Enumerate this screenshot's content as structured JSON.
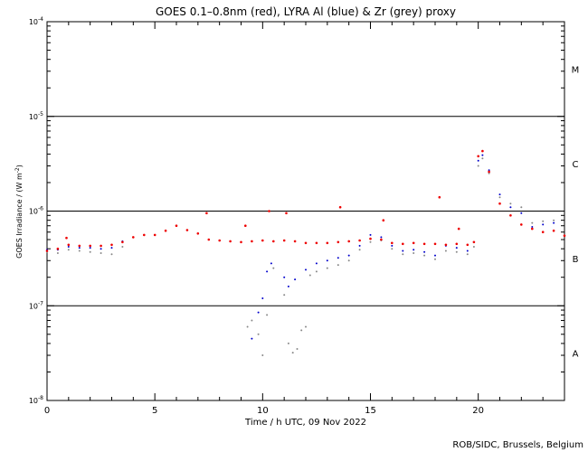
{
  "chart_data": {
    "type": "scatter",
    "title": "GOES 0.1–0.8nm (red), LYRA Al (blue) & Zr (grey) proxy",
    "xlabel": "Time / h UTC, 09 Nov 2022",
    "ylabel_main": "GOES Irradiance / (W m",
    "ylabel_sup": "-2",
    "ylabel_close": ")",
    "credit": "ROB/SIDC, Brussels, Belgium",
    "xlim": [
      0,
      24
    ],
    "ylim": [
      1e-08,
      0.0001
    ],
    "yscale": "log",
    "xticks": [
      {
        "v": 0,
        "label": "0"
      },
      {
        "v": 5,
        "label": "5"
      },
      {
        "v": 10,
        "label": "10"
      },
      {
        "v": 15,
        "label": "15"
      },
      {
        "v": 20,
        "label": "20"
      }
    ],
    "yticks": [
      {
        "exp": -8,
        "base": "10",
        "sup": "-8"
      },
      {
        "exp": -7,
        "base": "10",
        "sup": "-7"
      },
      {
        "exp": -6,
        "base": "10",
        "sup": "-6"
      },
      {
        "exp": -5,
        "base": "10",
        "sup": "-5"
      },
      {
        "exp": -4,
        "base": "10",
        "sup": "-4"
      }
    ],
    "flare_lines": [
      1e-07,
      1e-06,
      1e-05
    ],
    "flare_classes": [
      {
        "label": "A",
        "exp": -7.5
      },
      {
        "label": "B",
        "exp": -6.5
      },
      {
        "label": "C",
        "exp": -5.5
      },
      {
        "label": "M",
        "exp": -4.5
      }
    ],
    "series": [
      {
        "name": "GOES 0.1–0.8nm",
        "color": "#ee0000",
        "x": [
          0,
          0.5,
          1,
          1.5,
          2,
          2.5,
          3,
          3.5,
          4,
          4.5,
          5,
          5.5,
          6,
          6.5,
          7,
          7.5,
          8,
          8.5,
          9,
          9.5,
          10,
          10.5,
          11,
          11.5,
          12,
          12.5,
          13,
          13.5,
          14,
          14.5,
          15,
          15.5,
          16,
          16.5,
          17,
          17.5,
          18,
          18.5,
          19,
          19.5,
          19.8,
          20,
          20.2,
          20.5,
          21,
          21.5,
          22,
          22.5,
          23,
          23.5,
          24
        ],
        "y": [
          3.8e-07,
          4e-07,
          4.4e-07,
          4.3e-07,
          4.3e-07,
          4.3e-07,
          4.4e-07,
          4.7e-07,
          5.3e-07,
          5.6e-07,
          5.6e-07,
          6.2e-07,
          7e-07,
          6.3e-07,
          5.8e-07,
          5e-07,
          4.9e-07,
          4.8e-07,
          4.7e-07,
          4.8e-07,
          4.9e-07,
          4.8e-07,
          4.9e-07,
          4.8e-07,
          4.6e-07,
          4.6e-07,
          4.6e-07,
          4.7e-07,
          4.8e-07,
          4.9e-07,
          5.1e-07,
          5e-07,
          4.6e-07,
          4.5e-07,
          4.6e-07,
          4.5e-07,
          4.5e-07,
          4.4e-07,
          4.5e-07,
          4.4e-07,
          4.7e-07,
          3.8e-06,
          4.3e-06,
          2.6e-06,
          1.2e-06,
          9e-07,
          7.2e-07,
          6.5e-07,
          6e-07,
          6.2e-07,
          5.5e-07
        ],
        "spikes": [
          {
            "x": 0.9,
            "y": 5.2e-07
          },
          {
            "x": 7.4,
            "y": 9.5e-07
          },
          {
            "x": 9.2,
            "y": 7e-07
          },
          {
            "x": 10.3,
            "y": 1e-06
          },
          {
            "x": 11.1,
            "y": 9.5e-07
          },
          {
            "x": 13.6,
            "y": 1.1e-06
          },
          {
            "x": 15.6,
            "y": 8e-07
          },
          {
            "x": 18.2,
            "y": 1.4e-06
          },
          {
            "x": 19.1,
            "y": 6.5e-07
          }
        ]
      },
      {
        "name": "LYRA Al",
        "color": "#0000cc",
        "x": [
          0,
          0.5,
          1,
          1.5,
          2,
          2.5,
          3,
          3.5,
          9.5,
          9.8,
          10,
          10.2,
          10.4,
          11,
          11.2,
          11.5,
          12,
          12.5,
          13,
          13.5,
          14,
          14.5,
          15,
          15.5,
          16,
          16.5,
          17,
          17.5,
          18,
          18.5,
          19,
          19.5,
          19.8,
          20,
          20.2,
          20.5,
          21,
          21.5,
          22,
          22.5,
          23,
          23.5
        ],
        "y": [
          3.9e-07,
          3.9e-07,
          4.2e-07,
          4.1e-07,
          4.1e-07,
          4e-07,
          4.1e-07,
          4.8e-07,
          4.5e-08,
          8.5e-08,
          1.2e-07,
          2.3e-07,
          2.8e-07,
          2e-07,
          1.6e-07,
          1.9e-07,
          2.4e-07,
          2.8e-07,
          3e-07,
          3.2e-07,
          3.4e-07,
          4.3e-07,
          5.6e-07,
          5.3e-07,
          4.3e-07,
          3.8e-07,
          3.9e-07,
          3.7e-07,
          3.4e-07,
          4.3e-07,
          4.1e-07,
          3.8e-07,
          4.7e-07,
          3.4e-06,
          3.9e-06,
          2.7e-06,
          1.5e-06,
          1.1e-06,
          9.5e-07,
          6.8e-07,
          7.2e-07,
          7.5e-07
        ]
      },
      {
        "name": "Zr",
        "color": "#888888",
        "x": [
          0,
          0.5,
          1,
          1.5,
          2,
          2.5,
          3,
          3.5,
          9.3,
          9.5,
          9.8,
          10,
          10.2,
          10.5,
          11,
          11.2,
          11.4,
          11.6,
          11.8,
          12,
          12.2,
          12.5,
          13,
          13.5,
          14,
          14.5,
          15,
          15.5,
          16,
          16.5,
          17,
          17.5,
          18,
          18.5,
          19,
          19.5,
          19.8,
          20,
          20.2,
          20.5,
          21,
          21.5,
          22,
          22.5,
          23,
          23.5
        ],
        "y": [
          3.7e-07,
          3.6e-07,
          3.9e-07,
          3.8e-07,
          3.7e-07,
          3.6e-07,
          3.5e-07,
          4.2e-07,
          6e-08,
          7e-08,
          5e-08,
          3e-08,
          8e-08,
          2.5e-07,
          1.3e-07,
          4e-08,
          3.2e-08,
          3.5e-08,
          5.5e-08,
          6e-08,
          2.1e-07,
          2.3e-07,
          2.5e-07,
          2.7e-07,
          3e-07,
          3.9e-07,
          4.7e-07,
          4.9e-07,
          4e-07,
          3.5e-07,
          3.6e-07,
          3.4e-07,
          3.1e-07,
          3.8e-07,
          3.7e-07,
          3.5e-07,
          4.2e-07,
          3e-06,
          3.6e-06,
          2.5e-06,
          1.4e-06,
          1.2e-06,
          1.1e-06,
          7.5e-07,
          7.8e-07,
          8e-07
        ]
      }
    ]
  }
}
